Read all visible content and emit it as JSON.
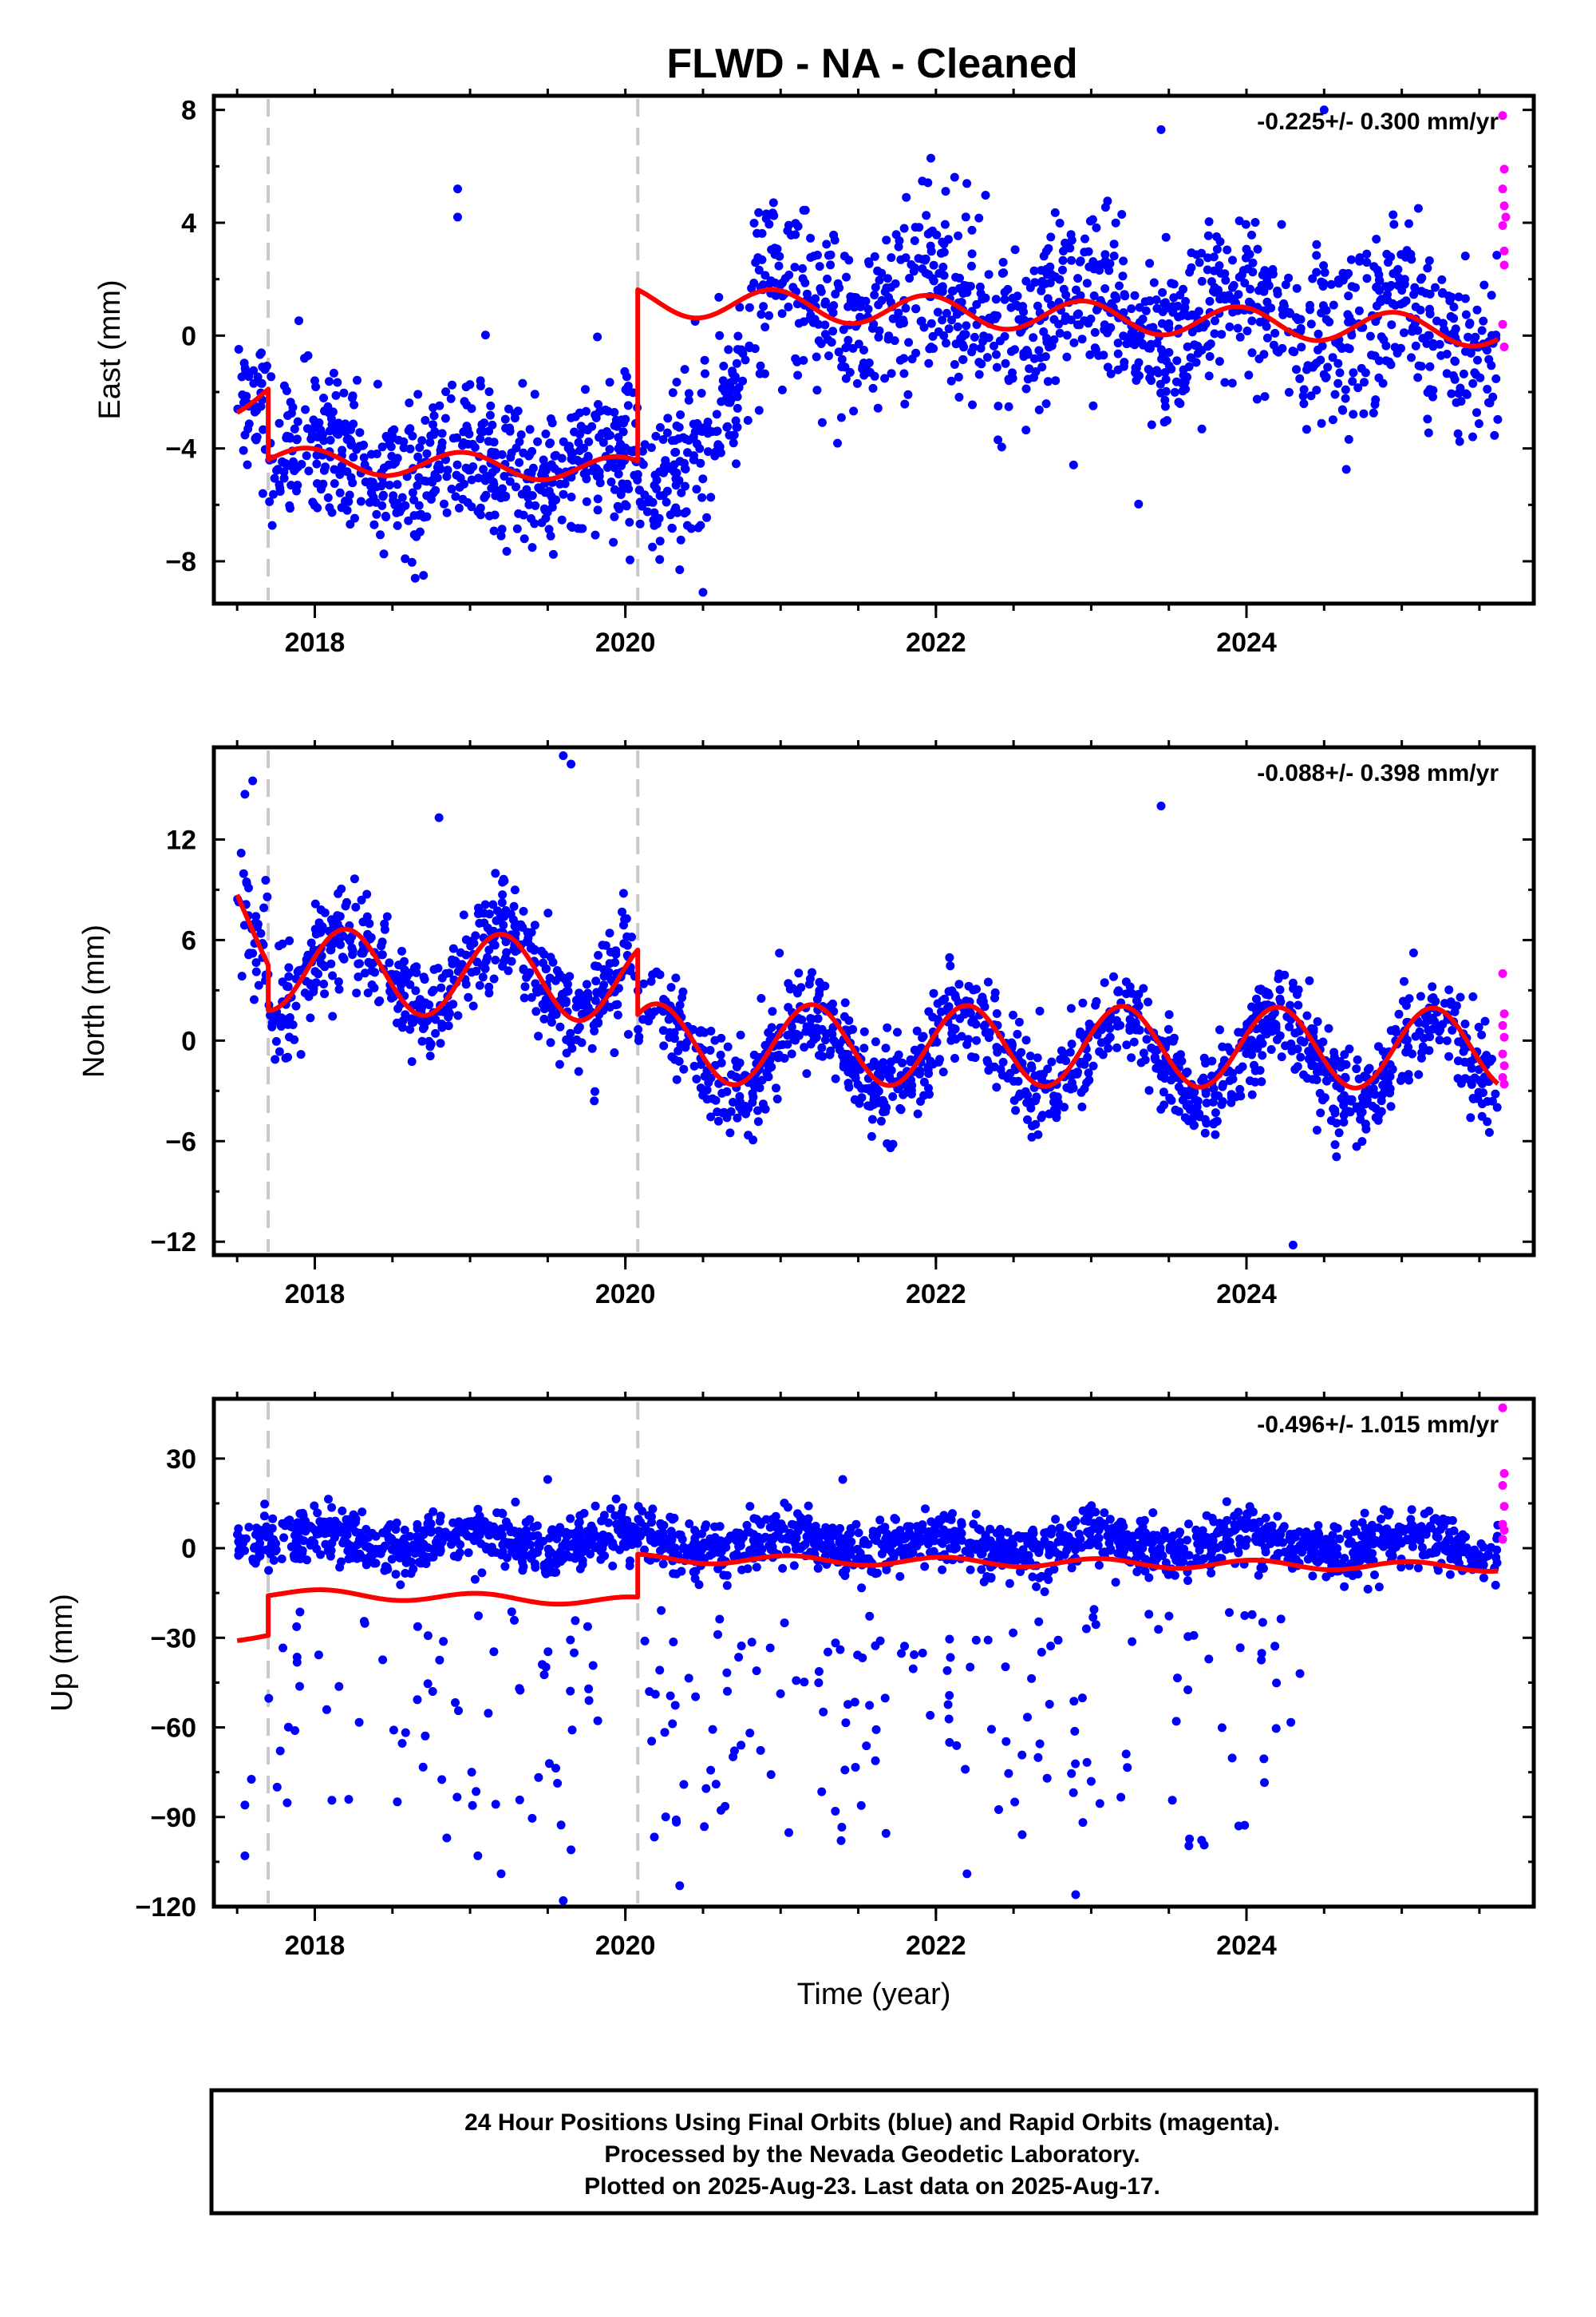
{
  "title": "FLWD  - NA - Cleaned",
  "colors": {
    "final": "#0000ff",
    "rapid": "#ff00ff",
    "model": "#ff0000",
    "offset": "#c8c8c8"
  },
  "footer": {
    "line1": "24 Hour Positions Using Final Orbits (blue) and Rapid Orbits (magenta).",
    "line2": "Processed by the Nevada Geodetic Laboratory.",
    "line3": "Plotted on 2025-Aug-23. Last data on 2025-Aug-17."
  },
  "chart_data": [
    {
      "type": "scatter",
      "name": "East",
      "ylabel": "East (mm)",
      "xlabel": "",
      "xlim": [
        2017.35,
        2025.85
      ],
      "ylim": [
        -9.5,
        8.5
      ],
      "yticks": [
        -8,
        -4,
        0,
        4,
        8
      ],
      "ytick_labels": [
        "−8",
        "−4",
        "0",
        "4",
        "8"
      ],
      "xticks": [
        2018,
        2020,
        2022,
        2024
      ],
      "xtick_labels": [
        "2018",
        "2020",
        "2022",
        "2024"
      ],
      "rate": "-0.225+/- 0.300 mm/yr",
      "offset_epochs": [
        2017.7,
        2020.08
      ],
      "scatter": {
        "t0": 2017.5,
        "t1": 2025.62,
        "n": 1900,
        "segments": [
          {
            "start": 2017.5,
            "end": 2017.7,
            "level": -2.2,
            "slope": 0,
            "amp": 0.4,
            "phase": 0.3,
            "noise": 1.2
          },
          {
            "start": 2017.7,
            "end": 2020.08,
            "level": -4.5,
            "slope": 0,
            "amp": 0.6,
            "phase": 0.3,
            "noise": 1.3
          },
          {
            "start": 2020.08,
            "end": 2020.8,
            "level": -6.0,
            "slope": 7.0,
            "amp": 0.3,
            "phase": 0.3,
            "noise": 1.4
          },
          {
            "start": 2020.8,
            "end": 2025.62,
            "level": 1.2,
            "slope": -0.2,
            "amp": 1.0,
            "phase": 0.3,
            "noise": 1.5
          }
        ],
        "outliers": [
          {
            "x": 2018.92,
            "y": 5.2
          },
          {
            "x": 2018.92,
            "y": 4.2
          },
          {
            "x": 2023.45,
            "y": 7.3
          },
          {
            "x": 2024.5,
            "y": 8.0
          },
          {
            "x": 2019.35,
            "y": -7.2
          },
          {
            "x": 2018.7,
            "y": -8.5
          },
          {
            "x": 2020.5,
            "y": -9.1
          },
          {
            "x": 2020.35,
            "y": -8.3
          }
        ]
      },
      "rapid": [
        {
          "x": 2025.65,
          "y": 7.8
        },
        {
          "x": 2025.66,
          "y": 5.9
        },
        {
          "x": 2025.65,
          "y": 5.2
        },
        {
          "x": 2025.66,
          "y": 4.6
        },
        {
          "x": 2025.67,
          "y": 4.2
        },
        {
          "x": 2025.65,
          "y": 3.9
        },
        {
          "x": 2025.66,
          "y": 3.0
        },
        {
          "x": 2025.66,
          "y": 2.5
        },
        {
          "x": 2025.65,
          "y": 0.4
        },
        {
          "x": 2025.66,
          "y": -0.4
        }
      ],
      "model": {
        "segments": [
          {
            "start": 2017.5,
            "end": 2017.7,
            "level": -2.3,
            "slope": 2.0,
            "amp": 0.45,
            "phase": 0.3
          },
          {
            "start": 2017.7,
            "end": 2020.08,
            "level": -4.4,
            "slope": -0.15,
            "amp": 0.45,
            "phase": 0.3
          },
          {
            "start": 2020.08,
            "end": 2025.62,
            "level": 1.25,
            "slope": -0.2,
            "amp": 0.55,
            "phase": 0.3
          }
        ]
      }
    },
    {
      "type": "scatter",
      "name": "North",
      "ylabel": "North (mm)",
      "xlabel": "",
      "xlim": [
        2017.35,
        2025.85
      ],
      "ylim": [
        -12.8,
        17.5
      ],
      "yticks": [
        -12,
        -6,
        0,
        6,
        12
      ],
      "ytick_labels": [
        "−12",
        "−6",
        "0",
        "6",
        "12"
      ],
      "xticks": [
        2018,
        2020,
        2022,
        2024
      ],
      "xtick_labels": [
        "2018",
        "2020",
        "2022",
        "2024"
      ],
      "rate": "-0.088+/- 0.398 mm/yr",
      "offset_epochs": [
        2017.7,
        2020.08
      ],
      "scatter": {
        "t0": 2017.5,
        "t1": 2025.62,
        "n": 1700,
        "segments": [
          {
            "start": 2017.5,
            "end": 2017.7,
            "level": 8.0,
            "slope": -15.0,
            "amp": 0.5,
            "phase": 0.05,
            "noise": 2.2
          },
          {
            "start": 2017.7,
            "end": 2020.08,
            "level": 4.0,
            "slope": 0,
            "amp": 2.4,
            "phase": 0.05,
            "noise": 1.6
          },
          {
            "start": 2020.08,
            "end": 2025.62,
            "level": -0.6,
            "slope": -0.1,
            "amp": 2.5,
            "phase": 0.05,
            "noise": 1.4
          }
        ],
        "outliers": [
          {
            "x": 2017.6,
            "y": 15.5
          },
          {
            "x": 2017.55,
            "y": 14.7
          },
          {
            "x": 2019.6,
            "y": 17.0
          },
          {
            "x": 2019.65,
            "y": 16.5
          },
          {
            "x": 2023.45,
            "y": 14.0
          },
          {
            "x": 2024.3,
            "y": -12.2
          },
          {
            "x": 2019.8,
            "y": -3.6
          },
          {
            "x": 2018.8,
            "y": 13.3
          }
        ]
      },
      "rapid": [
        {
          "x": 2025.65,
          "y": 4.0
        },
        {
          "x": 2025.66,
          "y": 1.6
        },
        {
          "x": 2025.65,
          "y": 0.9
        },
        {
          "x": 2025.66,
          "y": 0.2
        },
        {
          "x": 2025.65,
          "y": -0.8
        },
        {
          "x": 2025.66,
          "y": -1.5
        },
        {
          "x": 2025.65,
          "y": -2.2
        },
        {
          "x": 2025.66,
          "y": -2.6
        }
      ],
      "model": {
        "segments": [
          {
            "start": 2017.5,
            "end": 2017.7,
            "level": 8.8,
            "slope": -20.0,
            "amp": 0.3,
            "phase": 0.05
          },
          {
            "start": 2017.7,
            "end": 2020.08,
            "level": 4.3,
            "slope": -0.3,
            "amp": 2.5,
            "phase": 0.05
          },
          {
            "start": 2020.08,
            "end": 2025.62,
            "level": -0.2,
            "slope": -0.05,
            "amp": 2.4,
            "phase": 0.05
          }
        ]
      }
    },
    {
      "type": "scatter",
      "name": "Up",
      "ylabel": "Up (mm)",
      "xlabel": "Time (year)",
      "xlim": [
        2017.35,
        2025.85
      ],
      "ylim": [
        -120,
        50
      ],
      "yticks": [
        -120,
        -90,
        -60,
        -30,
        0,
        30
      ],
      "ytick_labels": [
        "−120",
        "−90",
        "−60",
        "−30",
        "0",
        "30"
      ],
      "xticks": [
        2018,
        2020,
        2022,
        2024
      ],
      "xtick_labels": [
        "2018",
        "2020",
        "2022",
        "2024"
      ],
      "rate": "-0.496+/- 1.015 mm/yr",
      "offset_epochs": [
        2017.7,
        2020.08
      ],
      "scatter": {
        "t0": 2017.5,
        "t1": 2025.62,
        "n": 1800,
        "segments": [
          {
            "start": 2017.5,
            "end": 2017.7,
            "level": 3.0,
            "slope": 0,
            "amp": 1.0,
            "phase": 0.2,
            "noise": 5.0
          },
          {
            "start": 2017.7,
            "end": 2020.08,
            "level": 2.0,
            "slope": 0,
            "amp": 3.0,
            "phase": 0.2,
            "noise": 4.5
          },
          {
            "start": 2020.08,
            "end": 2025.62,
            "level": 2.0,
            "slope": -0.3,
            "amp": 3.0,
            "phase": 0.2,
            "noise": 4.5
          }
        ],
        "outlier_band": {
          "count": 230,
          "ymin": -100,
          "ymax": -20,
          "xmin": 2017.55,
          "xmax": 2024.4
        },
        "outliers": [
          {
            "x": 2017.55,
            "y": -103
          },
          {
            "x": 2017.55,
            "y": -86
          },
          {
            "x": 2018.85,
            "y": -97
          },
          {
            "x": 2019.05,
            "y": -103
          },
          {
            "x": 2019.2,
            "y": -109
          },
          {
            "x": 2019.6,
            "y": -118
          },
          {
            "x": 2019.65,
            "y": -101
          },
          {
            "x": 2020.35,
            "y": -113
          },
          {
            "x": 2022.2,
            "y": -109
          },
          {
            "x": 2022.9,
            "y": -116
          },
          {
            "x": 2023.95,
            "y": -93
          },
          {
            "x": 2019.5,
            "y": 23
          },
          {
            "x": 2021.4,
            "y": 23
          }
        ]
      },
      "rapid": [
        {
          "x": 2025.65,
          "y": 47
        },
        {
          "x": 2025.66,
          "y": 25
        },
        {
          "x": 2025.65,
          "y": 21
        },
        {
          "x": 2025.66,
          "y": 14
        },
        {
          "x": 2025.65,
          "y": 8
        },
        {
          "x": 2025.66,
          "y": 6
        },
        {
          "x": 2025.65,
          "y": 3
        }
      ],
      "model": {
        "segments": [
          {
            "start": 2017.5,
            "end": 2017.7,
            "level": -30.5,
            "slope": 8.0,
            "amp": 0.5,
            "phase": 0.2
          },
          {
            "start": 2017.7,
            "end": 2020.08,
            "level": -15.0,
            "slope": -1.2,
            "amp": 1.5,
            "phase": 0.2
          },
          {
            "start": 2020.08,
            "end": 2025.62,
            "level": -3.5,
            "slope": -0.5,
            "amp": 1.5,
            "phase": 0.2
          }
        ]
      }
    }
  ]
}
